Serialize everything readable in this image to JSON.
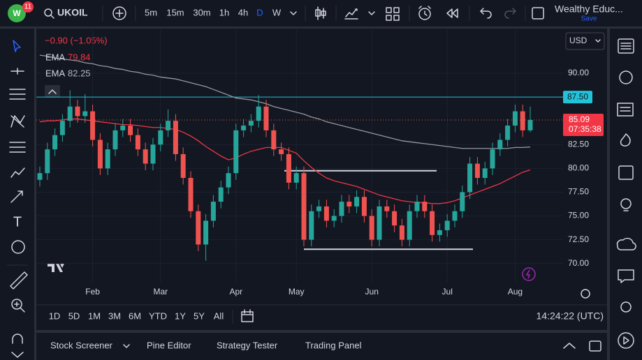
{
  "toolbar": {
    "badge": "11",
    "symbol": "UKOIL",
    "intervals": [
      "5m",
      "15m",
      "30m",
      "1h",
      "4h",
      "D",
      "W"
    ],
    "account": "Wealthy Educ...",
    "save": "Save"
  },
  "chart_data": {
    "type": "candlestick",
    "change_label": "−0.90 (−1.05%)",
    "currency": "USD",
    "countdown": "07:35:38",
    "categories": [
      null,
      null,
      null,
      null,
      null,
      null,
      null,
      "Feb",
      null,
      null,
      null,
      null,
      null,
      null,
      null,
      null,
      "Mar",
      null,
      null,
      null,
      null,
      null,
      null,
      null,
      null,
      null,
      "Apr",
      null,
      null,
      null,
      null,
      null,
      null,
      null,
      "May",
      null,
      null,
      null,
      null,
      null,
      null,
      null,
      null,
      null,
      "Jun",
      null,
      null,
      null,
      null,
      null,
      null,
      null,
      null,
      null,
      "Jul",
      null,
      null,
      null,
      null,
      null,
      null,
      null,
      null,
      "Aug",
      null,
      null
    ],
    "open": [
      78.8,
      79.5,
      82,
      83.5,
      85,
      86.5,
      85.5,
      86,
      83,
      80,
      82,
      84,
      84.5,
      83.5,
      82,
      80.5,
      82.5,
      84,
      85,
      81.5,
      79,
      75.5,
      72,
      74.5,
      76.5,
      78,
      79.5,
      84,
      84.5,
      85,
      86.5,
      84,
      82,
      81.5,
      78.5,
      79.5,
      72.5,
      75.5,
      76,
      74.5,
      75,
      76.5,
      76,
      77,
      75,
      72.5,
      76,
      75.5,
      74,
      72.5,
      75.5,
      76.5,
      75.5,
      73,
      73.5,
      74.5,
      75.5,
      77.5,
      80.5,
      79,
      80,
      82,
      83,
      84.5,
      86,
      84
    ],
    "high": [
      80.2,
      82.7,
      84.2,
      85.7,
      88.2,
      87.2,
      87.8,
      86.7,
      83.7,
      82.7,
      84.7,
      85.2,
      85.2,
      84.2,
      82.7,
      83.2,
      84.7,
      86.2,
      85.7,
      82.2,
      79.7,
      76.2,
      75.2,
      77.2,
      78.7,
      80.2,
      84.7,
      85.2,
      85.7,
      87.7,
      87.2,
      84.7,
      82.7,
      82.2,
      80.2,
      80.2,
      76.2,
      76.7,
      76.7,
      75.7,
      77.2,
      77.2,
      77.7,
      77.7,
      75.7,
      76.7,
      76.7,
      76.2,
      74.7,
      76.2,
      77.2,
      77.2,
      76.2,
      74.2,
      75.2,
      76.2,
      78.2,
      81.2,
      81.2,
      80.7,
      82.7,
      83.7,
      85.2,
      86.7,
      86.7,
      86.5
    ],
    "low": [
      78.1,
      78.8,
      81.3,
      82.8,
      84.3,
      84.8,
      84.8,
      82.3,
      79.3,
      79.3,
      81.3,
      83.3,
      82.8,
      81.3,
      79.8,
      79.8,
      81.8,
      83.3,
      80.8,
      78.3,
      74.8,
      71.3,
      70.3,
      73.8,
      75.8,
      77.3,
      78.8,
      83.3,
      83.8,
      84.3,
      83.3,
      81.3,
      80.8,
      77.8,
      77.8,
      71.8,
      71.8,
      74.8,
      73.8,
      73.8,
      74.3,
      75.3,
      75.3,
      74.3,
      71.8,
      71.8,
      74.8,
      73.3,
      71.8,
      71.8,
      74.8,
      74.8,
      72.3,
      72.3,
      72.8,
      73.8,
      74.8,
      76.8,
      78.3,
      78.3,
      79.3,
      81.3,
      82.3,
      83.8,
      83.3,
      83.8
    ],
    "close": [
      79.5,
      82,
      83.5,
      85,
      86.5,
      85.5,
      86,
      83,
      80,
      82,
      84,
      84.5,
      83.5,
      82,
      80.5,
      82.5,
      84,
      85,
      81.5,
      79,
      75.5,
      72,
      74.5,
      76.5,
      78,
      79.5,
      84,
      84.5,
      85,
      86.5,
      84,
      82,
      81.5,
      78.5,
      79.5,
      72.5,
      75.5,
      76,
      74.5,
      75,
      76.5,
      76,
      77,
      75,
      72.5,
      76,
      75.5,
      74,
      72.5,
      75.5,
      76.5,
      75.5,
      73,
      73.5,
      74.5,
      75.5,
      77.5,
      80.5,
      79,
      80,
      82,
      83,
      84.5,
      86,
      84,
      85.09
    ],
    "up_color": "#26a69a",
    "down_color": "#ef5350",
    "series": [
      {
        "name": "EMA",
        "color": "#f23645",
        "values": [
          84.9,
          85.0,
          85.0,
          85.1,
          85.2,
          85.2,
          85.1,
          85.0,
          84.9,
          84.8,
          84.7,
          84.6,
          84.6,
          84.5,
          84.4,
          84.3,
          84.3,
          84.2,
          84.1,
          83.8,
          83.4,
          82.9,
          82.3,
          81.8,
          81.3,
          80.9,
          81.1,
          81.5,
          81.8,
          82.0,
          82.2,
          82.2,
          82.2,
          81.9,
          81.6,
          80.8,
          80.1,
          79.5,
          79.0,
          78.7,
          78.5,
          78.3,
          78.1,
          77.8,
          77.5,
          77.2,
          77.0,
          76.8,
          76.6,
          76.5,
          76.4,
          76.4,
          76.3,
          76.3,
          76.4,
          76.6,
          76.9,
          77.2,
          77.5,
          77.8,
          78.1,
          78.4,
          78.8,
          79.2,
          79.6,
          79.84
        ]
      },
      {
        "name": "EMA",
        "color": "#9598a1",
        "values": [
          91.9,
          91.8,
          91.6,
          91.5,
          91.4,
          91.3,
          91.1,
          91.0,
          90.8,
          90.7,
          90.5,
          90.4,
          90.2,
          90.1,
          89.9,
          89.8,
          89.6,
          89.5,
          89.4,
          89.2,
          89.0,
          88.8,
          88.6,
          88.3,
          88.0,
          87.7,
          87.4,
          87.3,
          87.2,
          87.0,
          86.8,
          86.5,
          86.3,
          86.1,
          85.9,
          85.7,
          85.4,
          85.2,
          84.9,
          84.7,
          84.5,
          84.3,
          84.1,
          83.9,
          83.7,
          83.5,
          83.3,
          83.1,
          82.9,
          82.8,
          82.7,
          82.6,
          82.5,
          82.4,
          82.3,
          82.2,
          82.1,
          82.1,
          82.1,
          82.1,
          82.1,
          82.1,
          82.1,
          82.2,
          82.2,
          82.25
        ]
      }
    ],
    "levels": [
      {
        "value": 87.5,
        "label": "87.50",
        "color": "#22c3d8"
      },
      {
        "value": 79.75,
        "color": "#d1d4dc"
      },
      {
        "value": 71.5,
        "color": "#d1d4dc"
      }
    ],
    "ylim": [
      68,
      94.4
    ],
    "yticks": [
      {
        "value": 90,
        "label": "90.00"
      },
      {
        "value": 82.5,
        "label": "82.50"
      },
      {
        "value": 80,
        "label": "80.00"
      },
      {
        "value": 77.5,
        "label": "77.50"
      },
      {
        "value": 75,
        "label": "75.00"
      },
      {
        "value": 72.5,
        "label": "72.50"
      },
      {
        "value": 70,
        "label": "70.00"
      }
    ],
    "grid": true
  },
  "range_bar": {
    "ranges": [
      "1D",
      "5D",
      "1M",
      "3M",
      "6M",
      "YTD",
      "1Y",
      "5Y",
      "All"
    ],
    "clock": "14:24:22 (UTC)"
  },
  "bottom_panel": {
    "tabs": [
      "Stock Screener",
      "Pine Editor",
      "Strategy Tester",
      "Trading Panel"
    ]
  }
}
